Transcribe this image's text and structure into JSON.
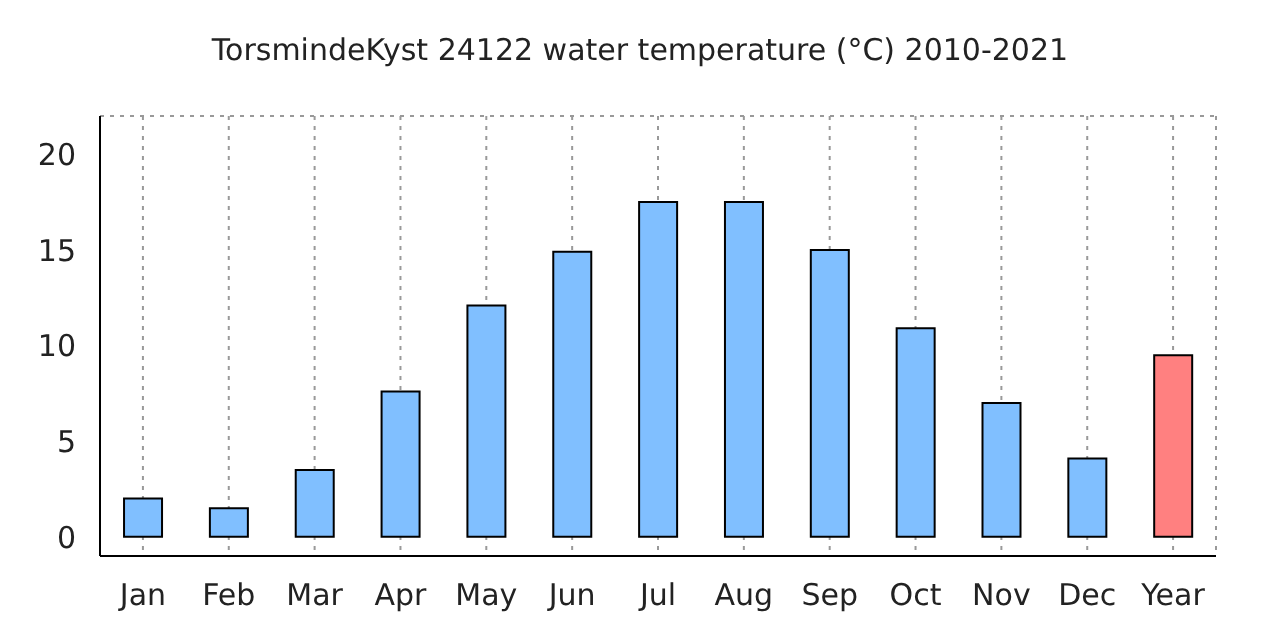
{
  "chart_data": {
    "type": "bar",
    "title": "TorsmindeKyst 24122 water temperature (°C) 2010-2021",
    "categories": [
      "Jan",
      "Feb",
      "Mar",
      "Apr",
      "May",
      "Jun",
      "Jul",
      "Aug",
      "Sep",
      "Oct",
      "Nov",
      "Dec",
      "Year"
    ],
    "values": [
      2.0,
      1.5,
      3.5,
      7.6,
      12.1,
      14.9,
      17.5,
      17.5,
      15.0,
      10.9,
      7.0,
      4.1,
      9.5
    ],
    "colors": [
      "#80bfff",
      "#80bfff",
      "#80bfff",
      "#80bfff",
      "#80bfff",
      "#80bfff",
      "#80bfff",
      "#80bfff",
      "#80bfff",
      "#80bfff",
      "#80bfff",
      "#80bfff",
      "#ff8080"
    ],
    "ylim": [
      -1,
      22
    ],
    "yticks": [
      0,
      5,
      10,
      15,
      20
    ],
    "grid": true
  }
}
